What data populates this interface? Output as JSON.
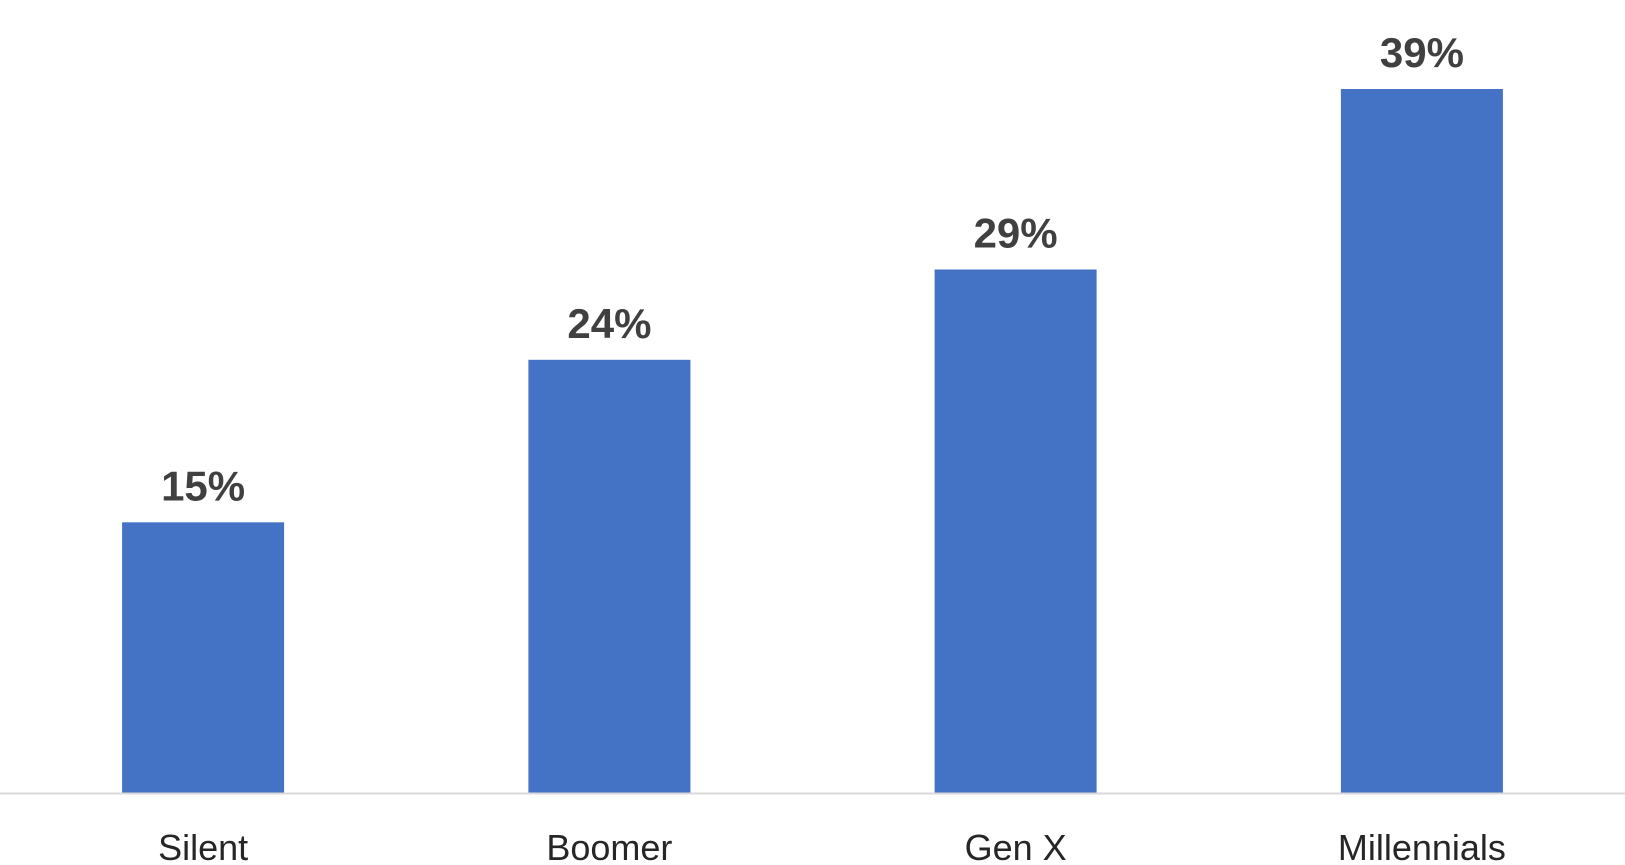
{
  "chart_data": {
    "type": "bar",
    "title": "",
    "xlabel": "",
    "ylabel": "",
    "categories": [
      "Silent",
      "Boomer",
      "Gen X",
      "Millennials"
    ],
    "values": [
      15,
      24,
      29,
      39
    ],
    "value_labels": [
      "15%",
      "24%",
      "29%",
      "39%"
    ],
    "unit": "%",
    "ylim": [
      0,
      42
    ],
    "grid": false,
    "legend": "none",
    "colors": {
      "bar": "#4472C4",
      "axis": "#D9D9D9",
      "value_label": "#404040",
      "category_label": "#262626",
      "background": "#FFFFFF"
    }
  }
}
